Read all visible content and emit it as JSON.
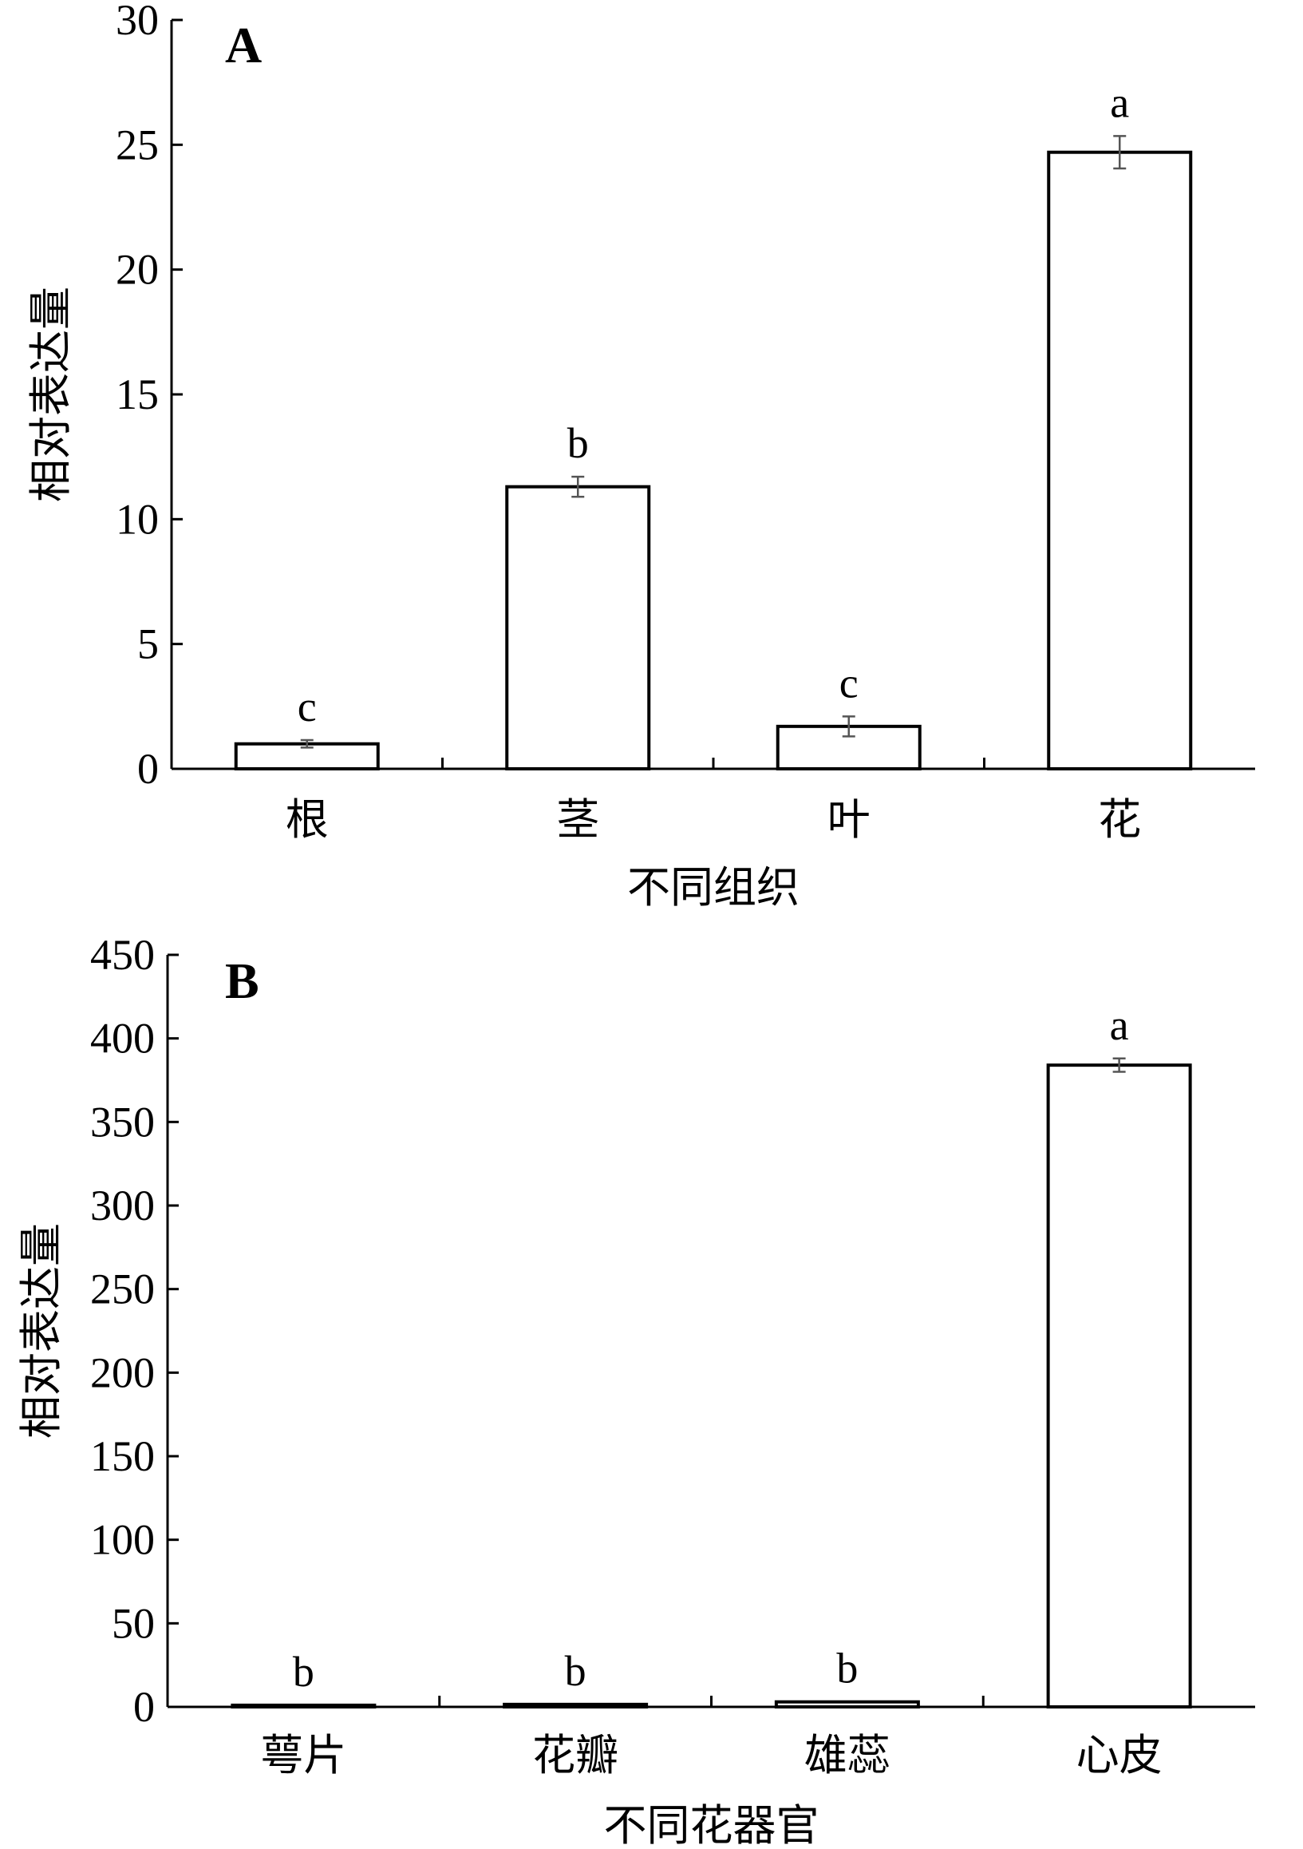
{
  "chart_data": [
    {
      "type": "bar",
      "panel": "A",
      "categories": [
        "根",
        "茎",
        "叶",
        "花"
      ],
      "values": [
        1.0,
        11.3,
        1.7,
        24.7
      ],
      "errors": [
        0.15,
        0.4,
        0.4,
        0.65
      ],
      "significance": [
        "c",
        "b",
        "c",
        "a"
      ],
      "xlabel": "不同组织",
      "ylabel": "相对表达量",
      "ylim": [
        0,
        30
      ],
      "yticks": [
        0,
        5,
        10,
        15,
        20,
        25,
        30
      ],
      "grid": false
    },
    {
      "type": "bar",
      "panel": "B",
      "categories": [
        "萼片",
        "花瓣",
        "雄蕊",
        "心皮"
      ],
      "values": [
        1.0,
        1.5,
        3.0,
        384
      ],
      "errors": [
        0,
        0,
        0,
        4
      ],
      "significance": [
        "b",
        "b",
        "b",
        "a"
      ],
      "xlabel": "不同花器官",
      "ylabel": "相对表达量",
      "ylim": [
        0,
        450
      ],
      "yticks": [
        0,
        50,
        100,
        150,
        200,
        250,
        300,
        350,
        400,
        450
      ],
      "grid": false
    }
  ]
}
